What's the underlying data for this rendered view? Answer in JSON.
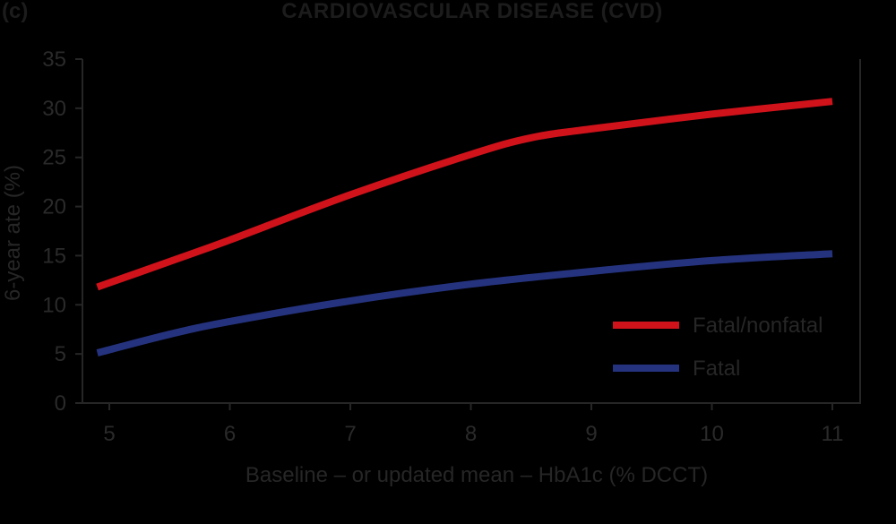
{
  "panel_label": "(c)",
  "chart_data": {
    "type": "line",
    "title": "CARDIOVASCULAR DISEASE (CVD)",
    "xlabel": "Baseline – or updated mean – HbA1c (% DCCT)",
    "ylabel": "6-year ate (%)",
    "xlim": [
      4.9,
      11.2
    ],
    "ylim": [
      0,
      35
    ],
    "xticks": [
      5,
      6,
      7,
      8,
      9,
      10,
      11
    ],
    "yticks": [
      0,
      5,
      10,
      15,
      20,
      25,
      30,
      35
    ],
    "grid": false,
    "legend_position": "bottom-right",
    "series": [
      {
        "name": "Fatal/nonfatal",
        "color": "#d0121b",
        "points": [
          [
            4.9,
            11.8
          ],
          [
            5.5,
            14.4
          ],
          [
            6,
            16.6
          ],
          [
            7,
            21.2
          ],
          [
            8,
            25.3
          ],
          [
            8.5,
            27.0
          ],
          [
            9,
            27.9
          ],
          [
            10,
            29.4
          ],
          [
            11,
            30.7
          ]
        ]
      },
      {
        "name": "Fatal",
        "color": "#25337f",
        "points": [
          [
            4.9,
            5.1
          ],
          [
            5.5,
            7.0
          ],
          [
            6,
            8.3
          ],
          [
            7,
            10.4
          ],
          [
            8,
            12.1
          ],
          [
            9,
            13.4
          ],
          [
            10,
            14.5
          ],
          [
            11,
            15.2
          ]
        ]
      }
    ]
  }
}
